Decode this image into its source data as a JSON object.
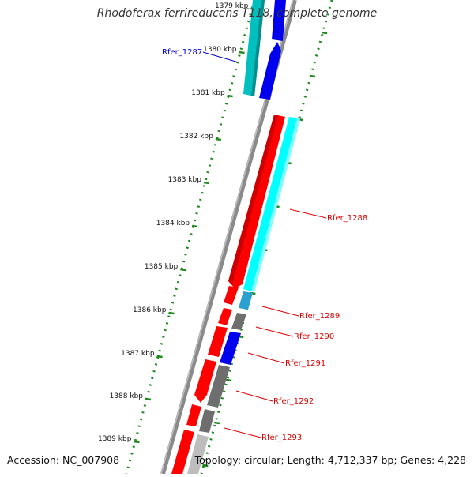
{
  "title": "Rhodoferax ferrireducens T118, complete genome",
  "footer": {
    "accession": "Accession: NC_007908",
    "summary": "Topology: circular; Length: 4,712,337 bp; Genes: 4,228"
  },
  "colors": {
    "backbone": "#8a8a8a",
    "ticks": "#1e8a1e",
    "forward_strand": "#ff0000",
    "reverse_strand": "#00ffff",
    "reverse_alt": "#0000ee",
    "teal": "#00bfbf",
    "gray": "#6e6e6e",
    "label_red": "#dd0000",
    "label_blue": "#0000cc"
  },
  "scale": {
    "ticks": [
      "1379 kbp",
      "1380 kbp",
      "1381 kbp",
      "1382 kbp",
      "1383 kbp",
      "1384 kbp",
      "1385 kbp",
      "1386 kbp",
      "1387 kbp",
      "1388 kbp",
      "1389 kbp"
    ]
  },
  "genes": [
    {
      "id": "g1287",
      "label": "Rfer_1287",
      "color": "blue"
    },
    {
      "id": "g1288",
      "label": "Rfer_1288",
      "color": "red"
    },
    {
      "id": "g1289",
      "label": "Rfer_1289",
      "color": "red"
    },
    {
      "id": "g1290",
      "label": "Rfer_1290",
      "color": "red"
    },
    {
      "id": "g1291",
      "label": "Rfer_1291",
      "color": "red"
    },
    {
      "id": "g1292",
      "label": "Rfer_1292",
      "color": "red"
    },
    {
      "id": "g1293",
      "label": "Rfer_1293",
      "color": "red"
    }
  ]
}
